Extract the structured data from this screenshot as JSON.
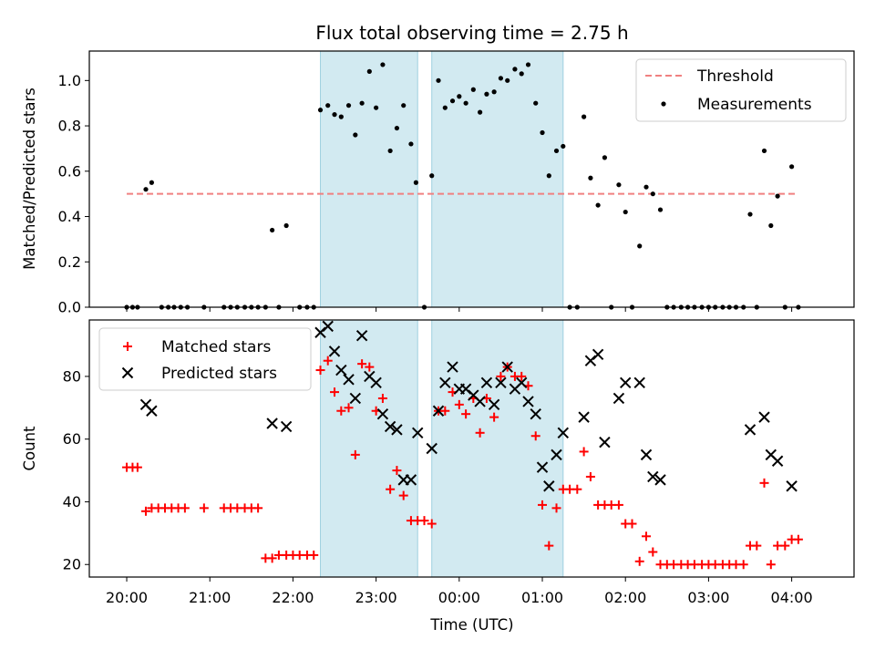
{
  "chart_data": [
    {
      "type": "scatter",
      "title": "Flux total observing time = 2.75 h",
      "xlabel": "",
      "ylabel": "Matched/Predicted stars",
      "xlim": [
        -0.45,
        8.75
      ],
      "ylim": [
        0,
        1.13
      ],
      "yticks": [
        0.0,
        0.2,
        0.4,
        0.6,
        0.8,
        1.0
      ],
      "ytick_labels": [
        "0.0",
        "0.2",
        "0.4",
        "0.6",
        "0.8",
        "1.0"
      ],
      "shaded_spans": [
        [
          2.33,
          3.5
        ],
        [
          3.67,
          5.25
        ]
      ],
      "span_color": "#add8e6",
      "legend_position": "upper right",
      "legend": [
        {
          "label": "Threshold",
          "kind": "dashed-line",
          "color": "#f08080"
        },
        {
          "label": "Measurements",
          "kind": "dot",
          "color": "#000000"
        }
      ],
      "threshold": {
        "x": [
          0.0,
          8.05
        ],
        "y": 0.5,
        "color": "#f08080"
      },
      "measurements": {
        "color": "#000000",
        "points": [
          [
            0.0,
            0
          ],
          [
            0.07,
            0
          ],
          [
            0.13,
            0
          ],
          [
            0.23,
            0.52
          ],
          [
            0.3,
            0.55
          ],
          [
            0.42,
            0
          ],
          [
            0.5,
            0
          ],
          [
            0.57,
            0
          ],
          [
            0.65,
            0
          ],
          [
            0.73,
            0
          ],
          [
            0.93,
            0
          ],
          [
            1.17,
            0
          ],
          [
            1.25,
            0
          ],
          [
            1.33,
            0
          ],
          [
            1.42,
            0
          ],
          [
            1.5,
            0
          ],
          [
            1.58,
            0
          ],
          [
            1.67,
            0
          ],
          [
            1.75,
            0.34
          ],
          [
            1.83,
            0
          ],
          [
            1.92,
            0.36
          ],
          [
            2.08,
            0
          ],
          [
            2.17,
            0
          ],
          [
            2.25,
            0
          ],
          [
            2.33,
            0.87
          ],
          [
            2.42,
            0.89
          ],
          [
            2.5,
            0.85
          ],
          [
            2.58,
            0.84
          ],
          [
            2.67,
            0.89
          ],
          [
            2.75,
            0.76
          ],
          [
            2.83,
            0.9
          ],
          [
            2.92,
            1.04
          ],
          [
            3.0,
            0.88
          ],
          [
            3.08,
            1.07
          ],
          [
            3.17,
            0.69
          ],
          [
            3.25,
            0.79
          ],
          [
            3.33,
            0.89
          ],
          [
            3.42,
            0.72
          ],
          [
            3.48,
            0.55
          ],
          [
            3.58,
            0
          ],
          [
            3.67,
            0.58
          ],
          [
            3.75,
            1.0
          ],
          [
            3.83,
            0.88
          ],
          [
            3.92,
            0.91
          ],
          [
            4.0,
            0.93
          ],
          [
            4.08,
            0.9
          ],
          [
            4.17,
            0.96
          ],
          [
            4.25,
            0.86
          ],
          [
            4.33,
            0.94
          ],
          [
            4.42,
            0.95
          ],
          [
            4.5,
            1.01
          ],
          [
            4.58,
            1.0
          ],
          [
            4.67,
            1.05
          ],
          [
            4.75,
            1.03
          ],
          [
            4.83,
            1.07
          ],
          [
            4.92,
            0.9
          ],
          [
            5.0,
            0.77
          ],
          [
            5.08,
            0.58
          ],
          [
            5.17,
            0.69
          ],
          [
            5.25,
            0.71
          ],
          [
            5.33,
            0
          ],
          [
            5.42,
            0
          ],
          [
            5.5,
            0.84
          ],
          [
            5.58,
            0.57
          ],
          [
            5.67,
            0.45
          ],
          [
            5.75,
            0.66
          ],
          [
            5.83,
            0
          ],
          [
            5.92,
            0.54
          ],
          [
            6.0,
            0.42
          ],
          [
            6.08,
            0
          ],
          [
            6.17,
            0.27
          ],
          [
            6.25,
            0.53
          ],
          [
            6.33,
            0.5
          ],
          [
            6.42,
            0.43
          ],
          [
            6.5,
            0
          ],
          [
            6.58,
            0
          ],
          [
            6.67,
            0
          ],
          [
            6.75,
            0
          ],
          [
            6.83,
            0
          ],
          [
            6.92,
            0
          ],
          [
            7.0,
            0
          ],
          [
            7.08,
            0
          ],
          [
            7.17,
            0
          ],
          [
            7.25,
            0
          ],
          [
            7.33,
            0
          ],
          [
            7.42,
            0
          ],
          [
            7.5,
            0.41
          ],
          [
            7.58,
            0
          ],
          [
            7.67,
            0.69
          ],
          [
            7.75,
            0.36
          ],
          [
            7.83,
            0.49
          ],
          [
            7.92,
            0
          ],
          [
            8.0,
            0.62
          ],
          [
            8.08,
            0
          ]
        ]
      }
    },
    {
      "type": "scatter",
      "title": "",
      "xlabel": "Time (UTC)",
      "ylabel": "Count",
      "xlim": [
        -0.45,
        8.75
      ],
      "ylim": [
        16,
        98
      ],
      "xticks": [
        0,
        1,
        2,
        3,
        4,
        5,
        6,
        7,
        8
      ],
      "xtick_labels": [
        "20:00",
        "21:00",
        "22:00",
        "23:00",
        "00:00",
        "01:00",
        "02:00",
        "03:00",
        "04:00"
      ],
      "yticks": [
        20,
        40,
        60,
        80
      ],
      "ytick_labels": [
        "20",
        "40",
        "60",
        "80"
      ],
      "shaded_spans": [
        [
          2.33,
          3.5
        ],
        [
          3.67,
          5.25
        ]
      ],
      "span_color": "#add8e6",
      "legend_position": "upper left",
      "series": [
        {
          "name": "Matched stars",
          "marker": "plus",
          "color": "#ff0000",
          "points": [
            [
              0.0,
              51
            ],
            [
              0.07,
              51
            ],
            [
              0.13,
              51
            ],
            [
              0.23,
              37
            ],
            [
              0.3,
              38
            ],
            [
              0.38,
              38
            ],
            [
              0.46,
              38
            ],
            [
              0.54,
              38
            ],
            [
              0.62,
              38
            ],
            [
              0.7,
              38
            ],
            [
              0.93,
              38
            ],
            [
              1.17,
              38
            ],
            [
              1.25,
              38
            ],
            [
              1.33,
              38
            ],
            [
              1.42,
              38
            ],
            [
              1.5,
              38
            ],
            [
              1.58,
              38
            ],
            [
              1.67,
              22
            ],
            [
              1.75,
              22
            ],
            [
              1.83,
              23
            ],
            [
              1.92,
              23
            ],
            [
              2.0,
              23
            ],
            [
              2.08,
              23
            ],
            [
              2.17,
              23
            ],
            [
              2.25,
              23
            ],
            [
              2.33,
              82
            ],
            [
              2.42,
              85
            ],
            [
              2.5,
              75
            ],
            [
              2.58,
              69
            ],
            [
              2.67,
              70
            ],
            [
              2.75,
              55
            ],
            [
              2.83,
              84
            ],
            [
              2.92,
              83
            ],
            [
              3.0,
              69
            ],
            [
              3.08,
              73
            ],
            [
              3.17,
              44
            ],
            [
              3.25,
              50
            ],
            [
              3.33,
              42
            ],
            [
              3.42,
              34
            ],
            [
              3.5,
              34
            ],
            [
              3.58,
              34
            ],
            [
              3.67,
              33
            ],
            [
              3.75,
              69
            ],
            [
              3.83,
              69
            ],
            [
              3.92,
              75
            ],
            [
              4.0,
              71
            ],
            [
              4.08,
              68
            ],
            [
              4.17,
              73
            ],
            [
              4.25,
              62
            ],
            [
              4.33,
              73
            ],
            [
              4.42,
              67
            ],
            [
              4.5,
              80
            ],
            [
              4.58,
              83
            ],
            [
              4.67,
              80
            ],
            [
              4.75,
              80
            ],
            [
              4.83,
              77
            ],
            [
              4.92,
              61
            ],
            [
              5.0,
              39
            ],
            [
              5.08,
              26
            ],
            [
              5.17,
              38
            ],
            [
              5.25,
              44
            ],
            [
              5.33,
              44
            ],
            [
              5.42,
              44
            ],
            [
              5.5,
              56
            ],
            [
              5.58,
              48
            ],
            [
              5.67,
              39
            ],
            [
              5.75,
              39
            ],
            [
              5.83,
              39
            ],
            [
              5.92,
              39
            ],
            [
              6.0,
              33
            ],
            [
              6.08,
              33
            ],
            [
              6.17,
              21
            ],
            [
              6.25,
              29
            ],
            [
              6.33,
              24
            ],
            [
              6.42,
              20
            ],
            [
              6.5,
              20
            ],
            [
              6.58,
              20
            ],
            [
              6.67,
              20
            ],
            [
              6.75,
              20
            ],
            [
              6.83,
              20
            ],
            [
              6.92,
              20
            ],
            [
              7.0,
              20
            ],
            [
              7.08,
              20
            ],
            [
              7.17,
              20
            ],
            [
              7.25,
              20
            ],
            [
              7.33,
              20
            ],
            [
              7.42,
              20
            ],
            [
              7.5,
              26
            ],
            [
              7.58,
              26
            ],
            [
              7.67,
              46
            ],
            [
              7.75,
              20
            ],
            [
              7.83,
              26
            ],
            [
              7.92,
              26
            ],
            [
              8.0,
              28
            ],
            [
              8.08,
              28
            ]
          ]
        },
        {
          "name": "Predicted stars",
          "marker": "x",
          "color": "#000000",
          "points": [
            [
              0.23,
              71
            ],
            [
              0.3,
              69
            ],
            [
              1.75,
              65
            ],
            [
              1.92,
              64
            ],
            [
              2.33,
              94
            ],
            [
              2.42,
              96
            ],
            [
              2.5,
              88
            ],
            [
              2.58,
              82
            ],
            [
              2.67,
              79
            ],
            [
              2.75,
              73
            ],
            [
              2.83,
              93
            ],
            [
              2.92,
              80
            ],
            [
              3.0,
              78
            ],
            [
              3.08,
              68
            ],
            [
              3.17,
              64
            ],
            [
              3.25,
              63
            ],
            [
              3.33,
              47
            ],
            [
              3.42,
              47
            ],
            [
              3.5,
              62
            ],
            [
              3.67,
              57
            ],
            [
              3.75,
              69
            ],
            [
              3.83,
              78
            ],
            [
              3.92,
              83
            ],
            [
              4.0,
              76
            ],
            [
              4.08,
              76
            ],
            [
              4.17,
              74
            ],
            [
              4.25,
              72
            ],
            [
              4.33,
              78
            ],
            [
              4.42,
              71
            ],
            [
              4.5,
              78
            ],
            [
              4.58,
              83
            ],
            [
              4.67,
              76
            ],
            [
              4.75,
              78
            ],
            [
              4.83,
              72
            ],
            [
              4.92,
              68
            ],
            [
              5.0,
              51
            ],
            [
              5.08,
              45
            ],
            [
              5.17,
              55
            ],
            [
              5.25,
              62
            ],
            [
              5.5,
              67
            ],
            [
              5.58,
              85
            ],
            [
              5.67,
              87
            ],
            [
              5.75,
              59
            ],
            [
              5.92,
              73
            ],
            [
              6.0,
              78
            ],
            [
              6.17,
              78
            ],
            [
              6.25,
              55
            ],
            [
              6.33,
              48
            ],
            [
              6.42,
              47
            ],
            [
              7.5,
              63
            ],
            [
              7.67,
              67
            ],
            [
              7.75,
              55
            ],
            [
              7.83,
              53
            ],
            [
              8.0,
              45
            ]
          ]
        }
      ]
    }
  ]
}
